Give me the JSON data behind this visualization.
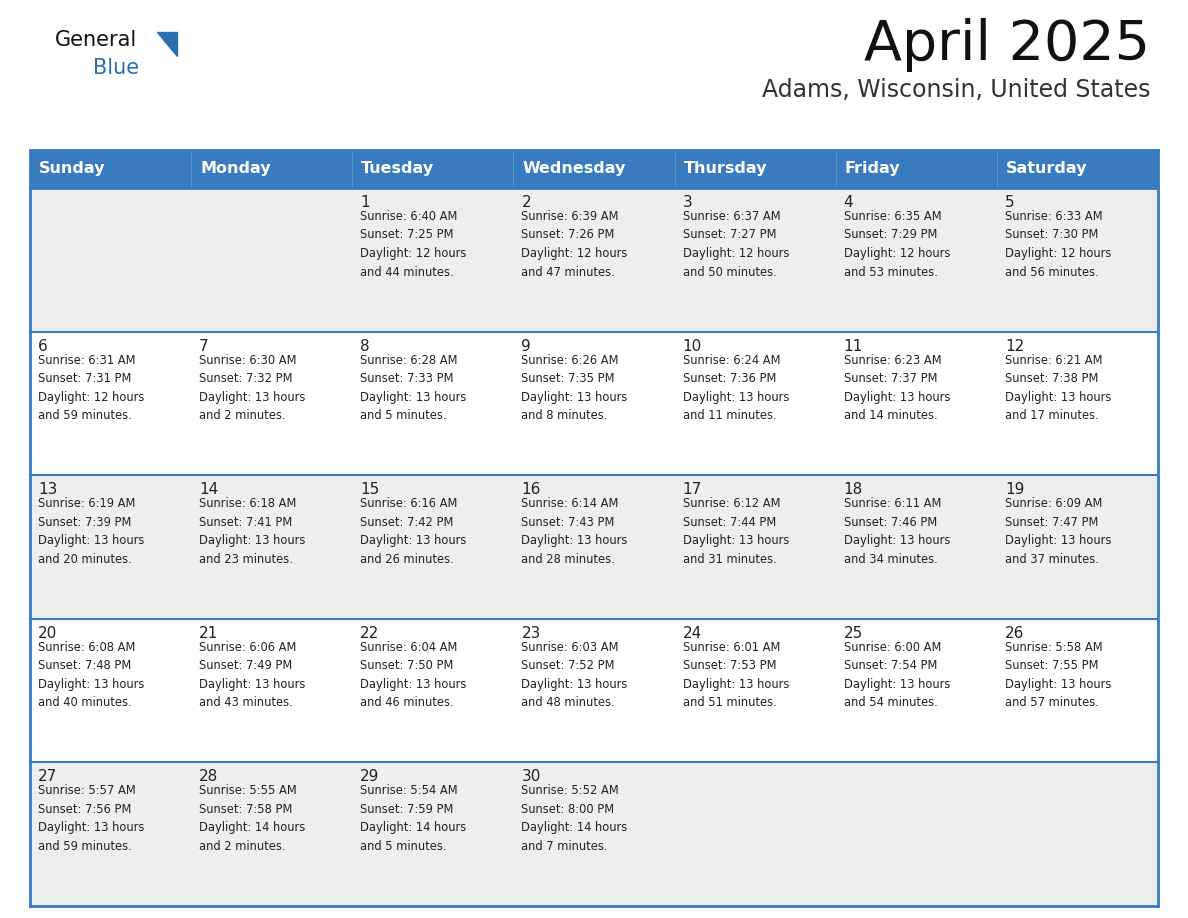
{
  "title": "April 2025",
  "subtitle": "Adams, Wisconsin, United States",
  "header_color": "#3a7bbf",
  "header_text_color": "#ffffff",
  "row_bg_odd": "#eeeeee",
  "row_bg_even": "#ffffff",
  "border_color": "#3a7bbf",
  "text_color": "#222222",
  "days_of_week": [
    "Sunday",
    "Monday",
    "Tuesday",
    "Wednesday",
    "Thursday",
    "Friday",
    "Saturday"
  ],
  "calendar_data": [
    [
      {
        "day": "",
        "info": ""
      },
      {
        "day": "",
        "info": ""
      },
      {
        "day": "1",
        "info": "Sunrise: 6:40 AM\nSunset: 7:25 PM\nDaylight: 12 hours\nand 44 minutes."
      },
      {
        "day": "2",
        "info": "Sunrise: 6:39 AM\nSunset: 7:26 PM\nDaylight: 12 hours\nand 47 minutes."
      },
      {
        "day": "3",
        "info": "Sunrise: 6:37 AM\nSunset: 7:27 PM\nDaylight: 12 hours\nand 50 minutes."
      },
      {
        "day": "4",
        "info": "Sunrise: 6:35 AM\nSunset: 7:29 PM\nDaylight: 12 hours\nand 53 minutes."
      },
      {
        "day": "5",
        "info": "Sunrise: 6:33 AM\nSunset: 7:30 PM\nDaylight: 12 hours\nand 56 minutes."
      }
    ],
    [
      {
        "day": "6",
        "info": "Sunrise: 6:31 AM\nSunset: 7:31 PM\nDaylight: 12 hours\nand 59 minutes."
      },
      {
        "day": "7",
        "info": "Sunrise: 6:30 AM\nSunset: 7:32 PM\nDaylight: 13 hours\nand 2 minutes."
      },
      {
        "day": "8",
        "info": "Sunrise: 6:28 AM\nSunset: 7:33 PM\nDaylight: 13 hours\nand 5 minutes."
      },
      {
        "day": "9",
        "info": "Sunrise: 6:26 AM\nSunset: 7:35 PM\nDaylight: 13 hours\nand 8 minutes."
      },
      {
        "day": "10",
        "info": "Sunrise: 6:24 AM\nSunset: 7:36 PM\nDaylight: 13 hours\nand 11 minutes."
      },
      {
        "day": "11",
        "info": "Sunrise: 6:23 AM\nSunset: 7:37 PM\nDaylight: 13 hours\nand 14 minutes."
      },
      {
        "day": "12",
        "info": "Sunrise: 6:21 AM\nSunset: 7:38 PM\nDaylight: 13 hours\nand 17 minutes."
      }
    ],
    [
      {
        "day": "13",
        "info": "Sunrise: 6:19 AM\nSunset: 7:39 PM\nDaylight: 13 hours\nand 20 minutes."
      },
      {
        "day": "14",
        "info": "Sunrise: 6:18 AM\nSunset: 7:41 PM\nDaylight: 13 hours\nand 23 minutes."
      },
      {
        "day": "15",
        "info": "Sunrise: 6:16 AM\nSunset: 7:42 PM\nDaylight: 13 hours\nand 26 minutes."
      },
      {
        "day": "16",
        "info": "Sunrise: 6:14 AM\nSunset: 7:43 PM\nDaylight: 13 hours\nand 28 minutes."
      },
      {
        "day": "17",
        "info": "Sunrise: 6:12 AM\nSunset: 7:44 PM\nDaylight: 13 hours\nand 31 minutes."
      },
      {
        "day": "18",
        "info": "Sunrise: 6:11 AM\nSunset: 7:46 PM\nDaylight: 13 hours\nand 34 minutes."
      },
      {
        "day": "19",
        "info": "Sunrise: 6:09 AM\nSunset: 7:47 PM\nDaylight: 13 hours\nand 37 minutes."
      }
    ],
    [
      {
        "day": "20",
        "info": "Sunrise: 6:08 AM\nSunset: 7:48 PM\nDaylight: 13 hours\nand 40 minutes."
      },
      {
        "day": "21",
        "info": "Sunrise: 6:06 AM\nSunset: 7:49 PM\nDaylight: 13 hours\nand 43 minutes."
      },
      {
        "day": "22",
        "info": "Sunrise: 6:04 AM\nSunset: 7:50 PM\nDaylight: 13 hours\nand 46 minutes."
      },
      {
        "day": "23",
        "info": "Sunrise: 6:03 AM\nSunset: 7:52 PM\nDaylight: 13 hours\nand 48 minutes."
      },
      {
        "day": "24",
        "info": "Sunrise: 6:01 AM\nSunset: 7:53 PM\nDaylight: 13 hours\nand 51 minutes."
      },
      {
        "day": "25",
        "info": "Sunrise: 6:00 AM\nSunset: 7:54 PM\nDaylight: 13 hours\nand 54 minutes."
      },
      {
        "day": "26",
        "info": "Sunrise: 5:58 AM\nSunset: 7:55 PM\nDaylight: 13 hours\nand 57 minutes."
      }
    ],
    [
      {
        "day": "27",
        "info": "Sunrise: 5:57 AM\nSunset: 7:56 PM\nDaylight: 13 hours\nand 59 minutes."
      },
      {
        "day": "28",
        "info": "Sunrise: 5:55 AM\nSunset: 7:58 PM\nDaylight: 14 hours\nand 2 minutes."
      },
      {
        "day": "29",
        "info": "Sunrise: 5:54 AM\nSunset: 7:59 PM\nDaylight: 14 hours\nand 5 minutes."
      },
      {
        "day": "30",
        "info": "Sunrise: 5:52 AM\nSunset: 8:00 PM\nDaylight: 14 hours\nand 7 minutes."
      },
      {
        "day": "",
        "info": ""
      },
      {
        "day": "",
        "info": ""
      },
      {
        "day": "",
        "info": ""
      }
    ]
  ],
  "logo_color_general": "#111111",
  "logo_color_blue": "#2a6faf",
  "fig_width": 11.88,
  "fig_height": 9.18,
  "dpi": 100
}
